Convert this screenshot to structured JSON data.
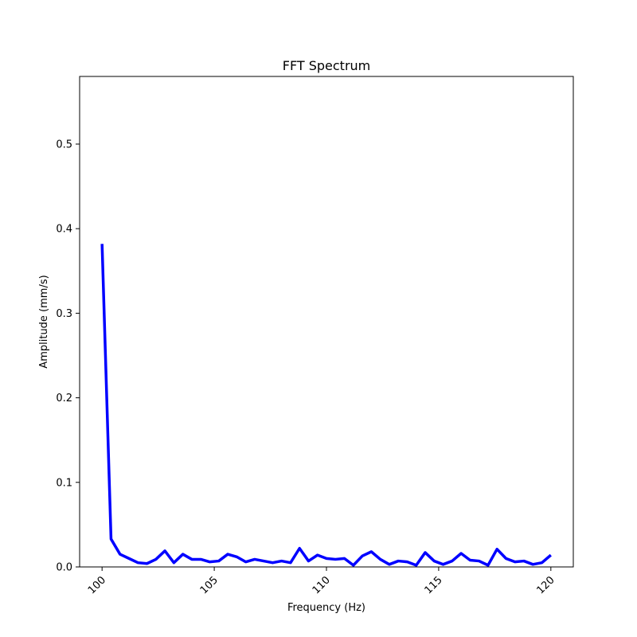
{
  "chart_data": {
    "type": "line",
    "title": "FFT Spectrum",
    "xlabel": "Frequency (Hz)",
    "ylabel": "Amplitude (mm/s)",
    "xlim": [
      99,
      121
    ],
    "ylim": [
      0,
      0.58
    ],
    "x_ticks": [
      100,
      105,
      110,
      115,
      120
    ],
    "y_ticks": [
      0.0,
      0.1,
      0.2,
      0.3,
      0.4,
      0.5
    ],
    "x_tick_labels": [
      "100",
      "105",
      "110",
      "115",
      "120"
    ],
    "y_tick_labels": [
      "0.0",
      "0.1",
      "0.2",
      "0.3",
      "0.4",
      "0.5"
    ],
    "grid": false,
    "series": [
      {
        "color": "#0000ff",
        "x": [
          100.0,
          100.4,
          100.8,
          101.2,
          101.6,
          102.0,
          102.4,
          102.8,
          103.2,
          103.6,
          104.0,
          104.4,
          104.8,
          105.2,
          105.6,
          106.0,
          106.4,
          106.8,
          107.2,
          107.6,
          108.0,
          108.4,
          108.8,
          109.2,
          109.6,
          110.0,
          110.4,
          110.8,
          111.2,
          111.6,
          112.0,
          112.4,
          112.8,
          113.2,
          113.6,
          114.0,
          114.4,
          114.8,
          115.2,
          115.6,
          116.0,
          116.4,
          116.8,
          117.2,
          117.6,
          118.0,
          118.4,
          118.8,
          119.2,
          119.6,
          120.0
        ],
        "y": [
          0.382,
          0.033,
          0.015,
          0.01,
          0.005,
          0.004,
          0.009,
          0.019,
          0.005,
          0.015,
          0.009,
          0.009,
          0.006,
          0.007,
          0.015,
          0.012,
          0.006,
          0.009,
          0.007,
          0.005,
          0.007,
          0.005,
          0.022,
          0.007,
          0.014,
          0.01,
          0.009,
          0.01,
          0.002,
          0.013,
          0.018,
          0.009,
          0.003,
          0.007,
          0.006,
          0.002,
          0.017,
          0.007,
          0.003,
          0.007,
          0.016,
          0.008,
          0.007,
          0.002,
          0.021,
          0.01,
          0.006,
          0.007,
          0.003,
          0.005,
          0.014
        ]
      }
    ]
  }
}
